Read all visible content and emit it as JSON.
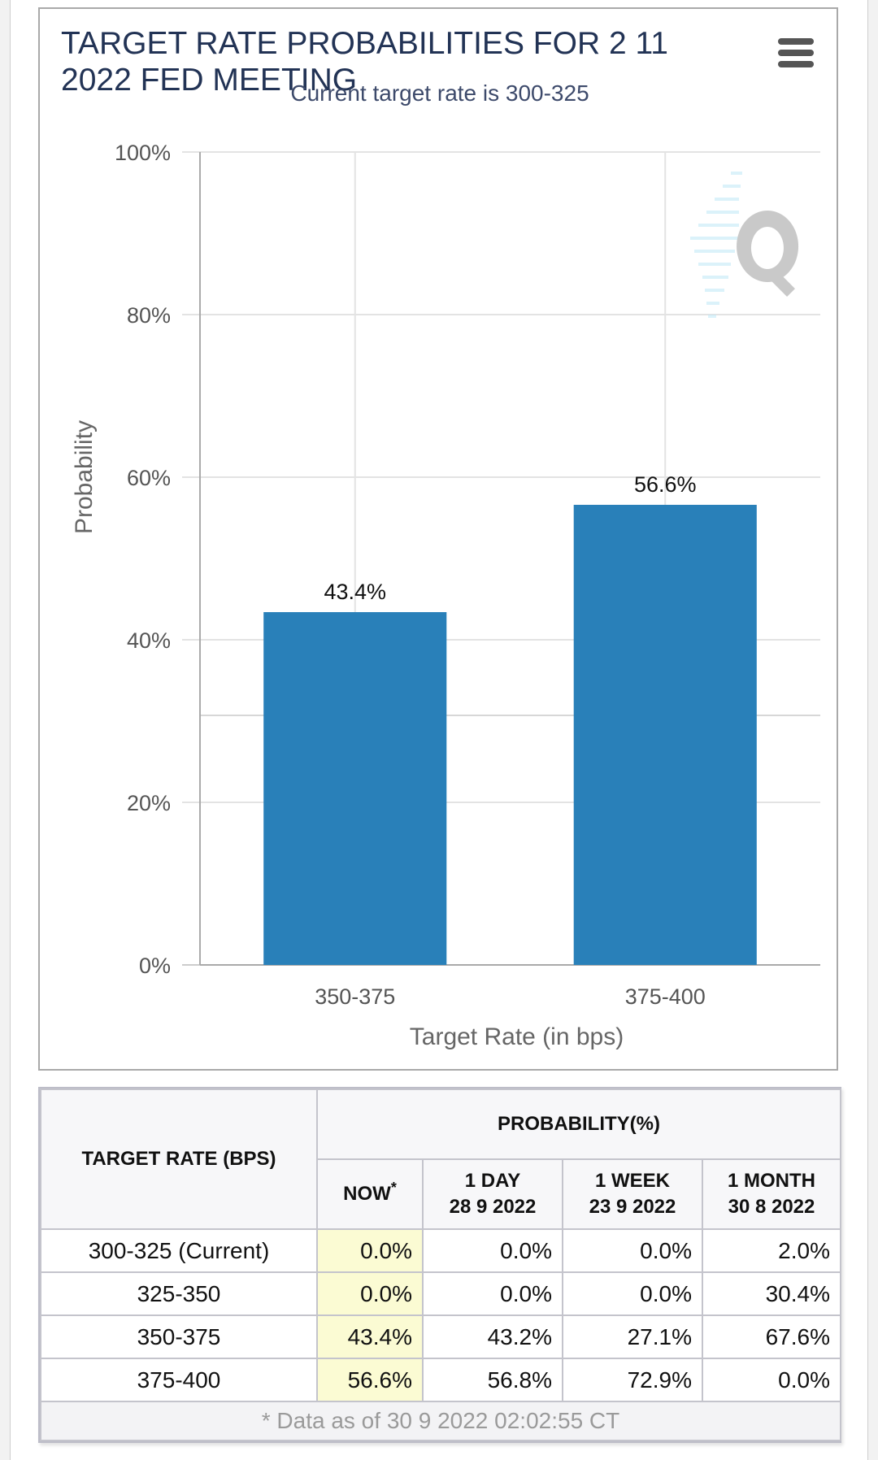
{
  "chart_data": {
    "type": "bar",
    "title": "TARGET RATE PROBABILITIES FOR 2 11 2022 FED MEETING",
    "subtitle": "Current target rate is 300-325",
    "categories": [
      "350-375",
      "375-400"
    ],
    "values": [
      43.4,
      56.6
    ],
    "data_labels": [
      "43.4%",
      "56.6%"
    ],
    "xlabel": "Target Rate (in bps)",
    "ylabel": "Probability",
    "ylim": [
      0,
      100
    ],
    "yticks": [
      0,
      20,
      40,
      60,
      80,
      100
    ],
    "ytick_labels": [
      "0%",
      "20%",
      "40%",
      "60%",
      "80%",
      "100%"
    ],
    "grid": true,
    "bar_color": "#2980b9",
    "legend": "none"
  },
  "menu": {
    "icon": "hamburger-menu-icon"
  },
  "table": {
    "col_target_rate": "TARGET RATE (BPS)",
    "col_probability": "PROBABILITY(%)",
    "col_now": "NOW",
    "col_now_mark": "*",
    "col_1day": "1 DAY",
    "col_1day_date": "28 9 2022",
    "col_1week": "1 WEEK",
    "col_1week_date": "23 9 2022",
    "col_1month": "1 MONTH",
    "col_1month_date": "30 8 2022",
    "rows": [
      {
        "rate": "300-325 (Current)",
        "now": "0.0%",
        "day": "0.0%",
        "week": "0.0%",
        "month": "2.0%"
      },
      {
        "rate": "325-350",
        "now": "0.0%",
        "day": "0.0%",
        "week": "0.0%",
        "month": "30.4%"
      },
      {
        "rate": "350-375",
        "now": "43.4%",
        "day": "43.2%",
        "week": "27.1%",
        "month": "67.6%"
      },
      {
        "rate": "375-400",
        "now": "56.6%",
        "day": "56.8%",
        "week": "72.9%",
        "month": "0.0%"
      }
    ],
    "footer": "* Data as of 30 9 2022 02:02:55 CT"
  }
}
